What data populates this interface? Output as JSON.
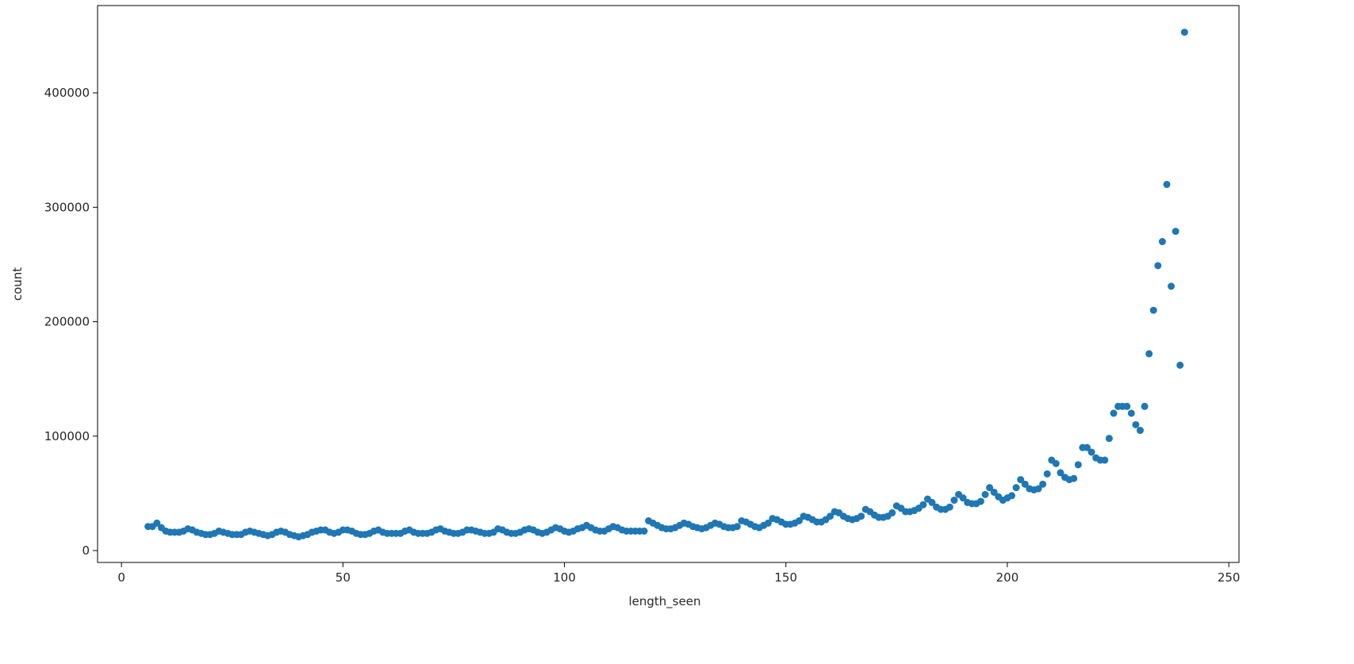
{
  "chart_data": {
    "type": "scatter",
    "xlabel": "length_seen",
    "ylabel": "count",
    "color": "#1f77b4",
    "xlim": [
      -5.4,
      252.3
    ],
    "ylim": [
      -10400,
      476300
    ],
    "xticks": [
      0,
      50,
      100,
      150,
      200,
      250
    ],
    "yticks": [
      0,
      100000,
      200000,
      300000,
      400000
    ],
    "x": [
      6,
      7,
      8,
      9,
      10,
      11,
      12,
      13,
      14,
      15,
      16,
      17,
      18,
      19,
      20,
      21,
      22,
      23,
      24,
      25,
      26,
      27,
      28,
      29,
      30,
      31,
      32,
      33,
      34,
      35,
      36,
      37,
      38,
      39,
      40,
      41,
      42,
      43,
      44,
      45,
      46,
      47,
      48,
      49,
      50,
      51,
      52,
      53,
      54,
      55,
      56,
      57,
      58,
      59,
      60,
      61,
      62,
      63,
      64,
      65,
      66,
      67,
      68,
      69,
      70,
      71,
      72,
      73,
      74,
      75,
      76,
      77,
      78,
      79,
      80,
      81,
      82,
      83,
      84,
      85,
      86,
      87,
      88,
      89,
      90,
      91,
      92,
      93,
      94,
      95,
      96,
      97,
      98,
      99,
      100,
      101,
      102,
      103,
      104,
      105,
      106,
      107,
      108,
      109,
      110,
      111,
      112,
      113,
      114,
      115,
      116,
      117,
      118,
      119,
      120,
      121,
      122,
      123,
      124,
      125,
      126,
      127,
      128,
      129,
      130,
      131,
      132,
      133,
      134,
      135,
      136,
      137,
      138,
      139,
      140,
      141,
      142,
      143,
      144,
      145,
      146,
      147,
      148,
      149,
      150,
      151,
      152,
      153,
      154,
      155,
      156,
      157,
      158,
      159,
      160,
      161,
      162,
      163,
      164,
      165,
      166,
      167,
      168,
      169,
      170,
      171,
      172,
      173,
      174,
      175,
      176,
      177,
      178,
      179,
      180,
      181,
      182,
      183,
      184,
      185,
      186,
      187,
      188,
      189,
      190,
      191,
      192,
      193,
      194,
      195,
      196,
      197,
      198,
      199,
      200,
      201,
      202,
      203,
      204,
      205,
      206,
      207,
      208,
      209,
      210,
      211,
      212,
      213,
      214,
      215,
      216,
      217,
      218,
      219,
      220,
      221,
      222,
      223,
      224,
      225,
      226,
      227,
      228,
      229,
      230,
      231,
      232,
      233,
      234,
      235,
      236,
      237,
      238,
      239,
      240
    ],
    "values": [
      21000,
      21000,
      24000,
      20000,
      17000,
      16000,
      16000,
      16000,
      17000,
      19000,
      18000,
      16000,
      15000,
      14000,
      14000,
      15000,
      17000,
      16000,
      15000,
      14000,
      14000,
      14000,
      16000,
      17000,
      16000,
      15000,
      14000,
      13000,
      14000,
      16000,
      17000,
      16000,
      14000,
      13000,
      12000,
      13000,
      14000,
      16000,
      17000,
      18000,
      18000,
      16000,
      15000,
      16000,
      18000,
      18000,
      17000,
      15000,
      14000,
      14000,
      15000,
      17000,
      18000,
      16000,
      15000,
      15000,
      15000,
      15000,
      17000,
      18000,
      16000,
      15000,
      15000,
      15000,
      16000,
      18000,
      19000,
      17000,
      16000,
      15000,
      15000,
      16000,
      18000,
      18000,
      17000,
      16000,
      15000,
      15000,
      16000,
      19000,
      18000,
      16000,
      15000,
      15000,
      16000,
      18000,
      19000,
      18000,
      16000,
      15000,
      16000,
      18000,
      20000,
      19000,
      17000,
      16000,
      17000,
      19000,
      20000,
      22000,
      20000,
      18000,
      17000,
      17000,
      19000,
      21000,
      20000,
      18000,
      17000,
      17000,
      17000,
      17000,
      17000,
      26000,
      24000,
      22000,
      20000,
      19000,
      19000,
      20000,
      22000,
      24000,
      23000,
      21000,
      20000,
      19000,
      20000,
      22000,
      24000,
      23000,
      21000,
      20000,
      20000,
      21000,
      26000,
      25000,
      23000,
      21000,
      20000,
      22000,
      24000,
      28000,
      27000,
      25000,
      23000,
      23000,
      24000,
      26000,
      30000,
      29000,
      27000,
      25000,
      25000,
      27000,
      30000,
      34000,
      33000,
      30000,
      28000,
      27000,
      28000,
      30000,
      36000,
      34000,
      31000,
      29000,
      29000,
      30000,
      33000,
      39000,
      37000,
      34000,
      34000,
      35000,
      37000,
      40000,
      45000,
      42000,
      38000,
      36000,
      36000,
      38000,
      44000,
      49000,
      46000,
      42000,
      41000,
      41000,
      43000,
      49000,
      55000,
      51000,
      47000,
      44000,
      46000,
      48000,
      55000,
      62000,
      58000,
      54000,
      53000,
      54000,
      58000,
      67000,
      79000,
      76000,
      68000,
      64000,
      62000,
      63000,
      75000,
      90000,
      90000,
      86000,
      81000,
      79000,
      79000,
      98000,
      120000,
      126000,
      126000,
      126000,
      120000,
      110000,
      105000,
      126000,
      172000,
      210000,
      249000,
      270000,
      320000,
      231000,
      279000,
      162000,
      453000
    ]
  }
}
